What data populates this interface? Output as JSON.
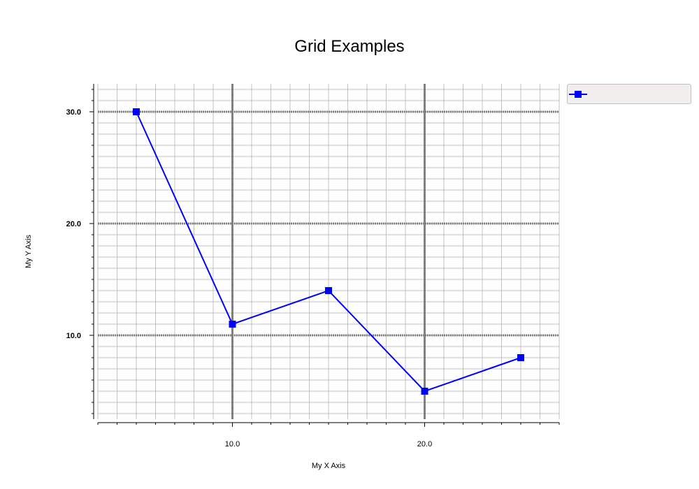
{
  "colors": {
    "series": "#0000ff",
    "major_grid": "#808080",
    "minor_grid": "#c0c0c0",
    "axis": "#000000",
    "legend_bg": "#f2eeee"
  },
  "chart_data": {
    "type": "line",
    "title": "Grid Examples",
    "xlabel": "My X Axis",
    "ylabel": "My Y Axis",
    "xlim": [
      3,
      27
    ],
    "ylim": [
      2.5,
      32.5
    ],
    "x_ticks": [
      10,
      20
    ],
    "x_tick_labels": [
      "10.0",
      "20.0"
    ],
    "y_ticks": [
      10,
      20,
      30
    ],
    "y_tick_labels": [
      "10.0",
      "20.0",
      "30.0"
    ],
    "grid": true,
    "legend_position": "right-top",
    "series": [
      {
        "name": "",
        "marker": "square",
        "x": [
          5,
          10,
          15,
          20,
          25
        ],
        "y": [
          30,
          11,
          14,
          5,
          8
        ]
      }
    ]
  }
}
